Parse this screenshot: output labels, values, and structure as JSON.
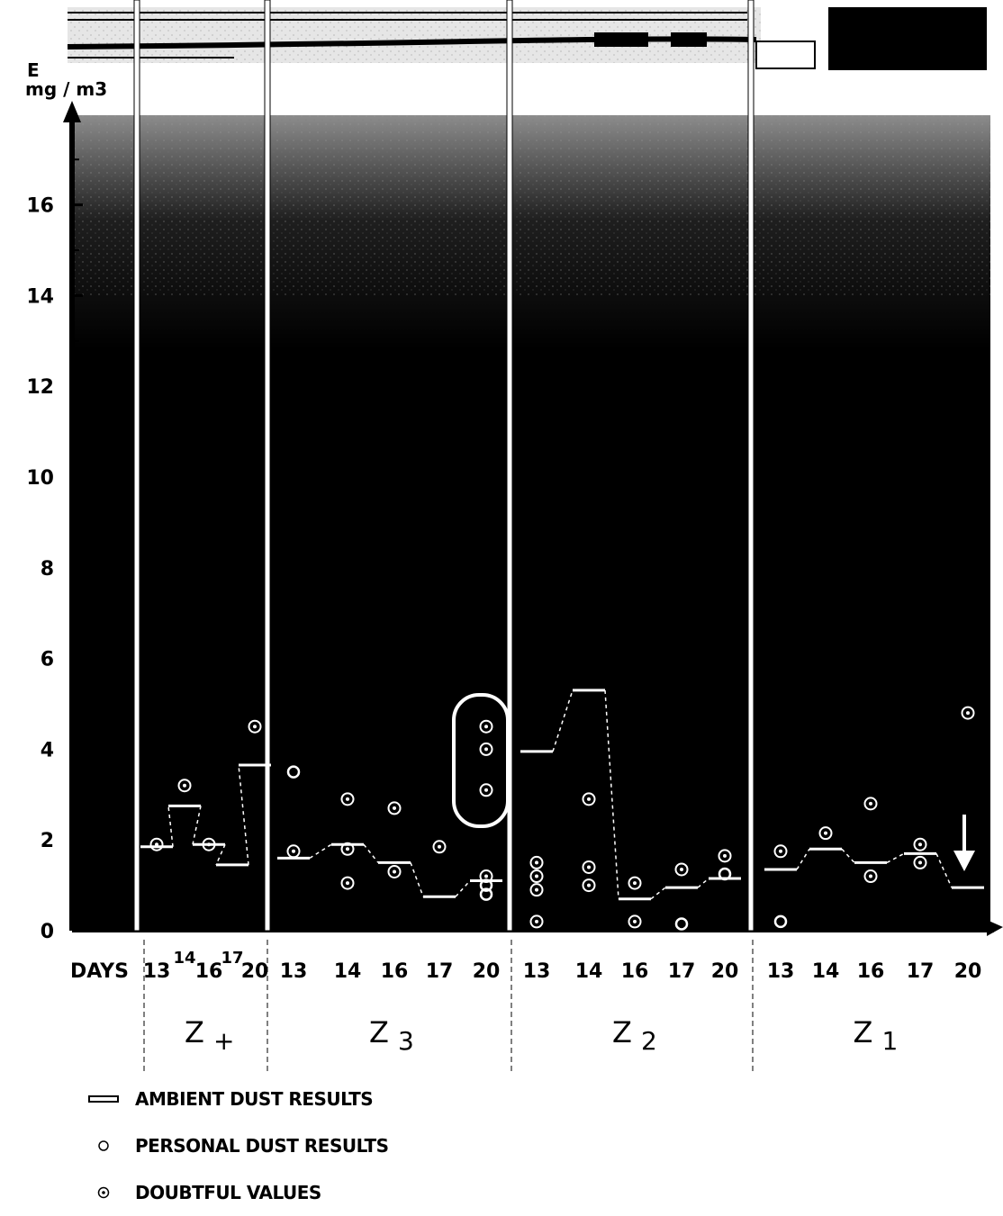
{
  "chart_data": {
    "type": "scatter",
    "y_axis": {
      "label_line1": "E",
      "label_line2": "mg / m3",
      "ylim": [
        0,
        18
      ],
      "ticks": [
        0,
        2,
        4,
        6,
        8,
        10,
        12,
        14,
        16
      ]
    },
    "x_axis": {
      "days_label": "DAYS"
    },
    "zones": [
      {
        "name": "Z",
        "suffix": "+",
        "days": [
          "13",
          "14",
          "16",
          "17",
          "20"
        ],
        "ambient": [
          1.85,
          2.75,
          1.9,
          1.45,
          3.65
        ],
        "personal": [
          [],
          [],
          [],
          [],
          []
        ],
        "doubtful": [
          [
            1.9
          ],
          [
            3.2
          ],
          [
            1.9
          ],
          [],
          [
            4.5
          ]
        ]
      },
      {
        "name": "Z",
        "suffix": "3",
        "days": [
          "13",
          "14",
          "16",
          "17",
          "20"
        ],
        "ambient": [
          1.6,
          1.9,
          1.5,
          0.75,
          1.1
        ],
        "personal": [
          [
            3.5
          ],
          [],
          [],
          [],
          [
            0.8,
            1.0
          ]
        ],
        "doubtful": [
          [
            1.75
          ],
          [
            2.9,
            1.8,
            1.05
          ],
          [
            2.7,
            1.3
          ],
          [
            1.85
          ],
          [
            4.5,
            4.0,
            3.1,
            1.2
          ]
        ]
      },
      {
        "name": "Z",
        "suffix": "2",
        "days": [
          "13",
          "14",
          "16",
          "17",
          "20"
        ],
        "ambient": [
          3.95,
          5.3,
          0.7,
          0.95,
          1.15
        ],
        "personal": [
          [],
          [],
          [],
          [
            0.15
          ],
          [
            1.25
          ]
        ],
        "doubtful": [
          [
            1.5,
            1.2,
            0.9,
            0.2
          ],
          [
            2.9,
            1.4,
            1.0
          ],
          [
            1.05,
            0.2
          ],
          [
            1.35
          ],
          [
            1.65
          ]
        ]
      },
      {
        "name": "Z",
        "suffix": "1",
        "days": [
          "13",
          "14",
          "16",
          "17",
          "20"
        ],
        "ambient": [
          1.35,
          1.8,
          1.5,
          1.7,
          0.95
        ],
        "personal": [
          [
            0.2
          ],
          [],
          [],
          [],
          []
        ],
        "doubtful": [
          [
            1.75
          ],
          [
            2.15
          ],
          [
            2.8,
            1.2
          ],
          [
            1.9,
            1.5
          ],
          [
            4.8
          ]
        ]
      }
    ],
    "highlighted_group": {
      "zone": 1,
      "day": "20"
    },
    "arrow_marker": {
      "zone": 3,
      "day": "20"
    },
    "legend": [
      {
        "symbol": "bar",
        "label": "AMBIENT DUST RESULTS"
      },
      {
        "symbol": "open-circle",
        "label": "PERSONAL DUST RESULTS"
      },
      {
        "symbol": "dotted-circle",
        "label": "DOUBTFUL VALUES"
      }
    ],
    "colors": {
      "background": "#000000",
      "marks": "#ffffff",
      "text": "#000000"
    }
  }
}
